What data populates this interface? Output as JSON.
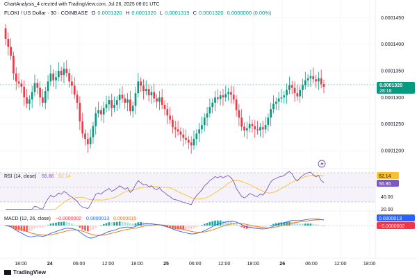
{
  "header": {
    "caption": "ChartAnalysis_4 created with TradingView.com, Jul 26, 2025 08:01 UTC",
    "symbol": "FLOKI / US Dollar · 30 · COINBASE",
    "o_label": "O",
    "o_value": "0.0001320",
    "h_label": "H",
    "h_value": "0.0001320",
    "l_label": "L",
    "l_value": "0.0001319",
    "c_label": "C",
    "c_value": "0.0001320",
    "change": "0.0000000 (0.00%)"
  },
  "price_axis": {
    "ticks": [
      "0.0001450",
      "0.0001400",
      "0.0001350",
      "0.0001300",
      "0.0001250",
      "0.0001200"
    ],
    "last_price": "0.0001320",
    "countdown": "28:18"
  },
  "rsi": {
    "title": "RSI (14, close)",
    "value": "56.86",
    "ma_value": "62.14",
    "ticks": [
      "40.00",
      "20.00"
    ],
    "badge_rsi": "56.86",
    "badge_ma": "62.14"
  },
  "macd": {
    "title": "MACD (12, 26, close)",
    "hist": "−0.0000002",
    "macd": "0.0000013",
    "signal": "0.0000015",
    "badge_macd": "0.0000013",
    "badge_hist": "−0.0000002"
  },
  "time_axis": [
    "18:00",
    "24",
    "06:00",
    "12:00",
    "18:00",
    "25",
    "06:00",
    "12:00",
    "18:00",
    "26",
    "06:00",
    "12:00",
    "18:00"
  ],
  "branding": "TradingView",
  "colors": {
    "up": "#089981",
    "down": "#f23645",
    "rsi": "#7e57c2",
    "rsi_ma": "#fbc02d",
    "macd": "#2962ff",
    "signal": "#ff6d00"
  },
  "chart_data": {
    "type": "candlestick",
    "interval": "30m",
    "ylim": [
      0.000117,
      0.000147
    ],
    "closes": [
      0.000141,
      0.0001395,
      0.0001378,
      0.0001345,
      0.000133,
      0.0001326,
      0.000132,
      0.00013,
      0.0001288,
      0.0001296,
      0.000131,
      0.0001327,
      0.0001318,
      0.00013,
      0.000129,
      0.0001312,
      0.000133,
      0.0001345,
      0.0001332,
      0.0001338,
      0.000135,
      0.0001342,
      0.0001354,
      0.0001346,
      0.000133,
      0.0001322,
      0.0001305,
      0.000129,
      0.0001255,
      0.0001232,
      0.0001222,
      0.0001212,
      0.0001225,
      0.0001246,
      0.000127,
      0.0001276,
      0.0001268,
      0.000128,
      0.0001287,
      0.0001295,
      0.000128,
      0.0001286,
      0.0001295,
      0.0001305,
      0.0001298,
      0.000129,
      0.0001296,
      0.0001274,
      0.0001284,
      0.0001308,
      0.000133,
      0.0001322,
      0.0001312,
      0.0001316,
      0.0001304,
      0.000131,
      0.0001298,
      0.0001292,
      0.00013,
      0.0001286,
      0.0001278,
      0.0001266,
      0.0001258,
      0.0001244,
      0.000124,
      0.0001236,
      0.000123,
      0.0001224,
      0.000122,
      0.0001215,
      0.000121,
      0.0001222,
      0.0001232,
      0.000124,
      0.0001248,
      0.0001262,
      0.000127,
      0.0001282,
      0.000129,
      0.00013,
      0.0001297,
      0.0001304,
      0.00013,
      0.0001306,
      0.000131,
      0.0001305,
      0.0001296,
      0.0001276,
      0.0001262,
      0.0001245,
      0.0001238,
      0.0001242,
      0.000125,
      0.0001246,
      0.000124,
      0.0001238,
      0.0001244,
      0.000124,
      0.0001248,
      0.0001262,
      0.0001278,
      0.0001288,
      0.0001292,
      0.0001298,
      0.00013,
      0.0001304,
      0.0001314,
      0.0001323,
      0.0001318,
      0.0001308,
      0.0001302,
      0.0001314,
      0.0001323,
      0.0001332,
      0.0001336,
      0.000134,
      0.0001334,
      0.000133,
      0.0001336,
      0.0001325,
      0.000132
    ]
  }
}
